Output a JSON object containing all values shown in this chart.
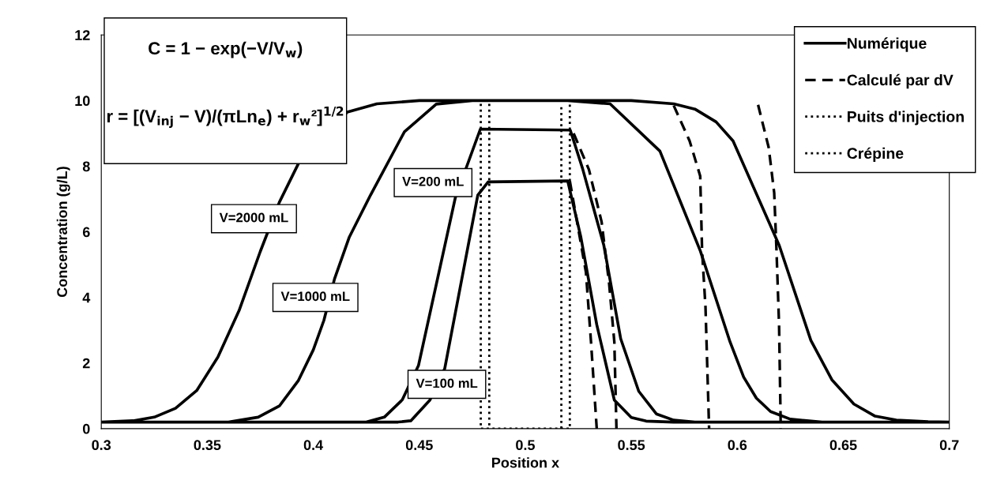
{
  "chart_data": {
    "type": "line",
    "xlabel": "Position x",
    "ylabel": "Concentration (g/L)",
    "xlim": [
      0.3,
      0.7
    ],
    "xticks": [
      0.3,
      0.35,
      0.4,
      0.45,
      0.5,
      0.55,
      0.6,
      0.65,
      0.7
    ],
    "ylim": [
      0,
      12
    ],
    "yticks": [
      0,
      2,
      4,
      6,
      8,
      10,
      12
    ],
    "grid": false,
    "legend": "top right",
    "marker": "none",
    "series": [
      {
        "name": "Numérique",
        "line_style": "solid",
        "color": "#000000",
        "x": [
          0.3,
          0.44,
          0.446,
          0.455,
          0.462,
          0.4776,
          0.4825,
          0.52,
          0.5262,
          0.5337,
          0.542,
          0.55,
          0.557,
          0.57,
          0.7,
          null,
          0.3,
          0.425,
          0.4335,
          0.442,
          0.4496,
          0.467,
          0.4788,
          0.5212,
          0.527,
          0.537,
          0.545,
          0.5535,
          0.5618,
          0.57,
          0.58,
          0.7,
          null,
          0.3,
          0.36,
          0.374,
          0.384,
          0.393,
          0.4,
          0.405,
          0.41,
          0.417,
          0.427,
          0.443,
          0.458,
          0.475,
          0.52,
          0.54,
          0.5635,
          0.5826,
          0.5966,
          0.603,
          0.609,
          0.6157,
          0.625,
          0.64,
          0.7,
          null,
          0.3,
          0.315,
          0.325,
          0.335,
          0.345,
          0.355,
          0.365,
          0.375,
          0.384,
          0.393,
          0.416,
          0.43,
          0.45,
          0.55,
          0.57,
          0.58,
          0.59,
          0.598,
          0.6198,
          0.6347,
          0.6446,
          0.655,
          0.665,
          0.675,
          0.69,
          0.7
        ],
        "values": [
          0.2,
          0.2,
          0.24,
          0.87,
          1.83,
          7.12,
          7.52,
          7.55,
          5.84,
          3.17,
          0.87,
          0.34,
          0.23,
          0.2,
          0.2,
          null,
          0.2,
          0.2,
          0.35,
          0.88,
          1.92,
          7.04,
          9.13,
          9.1,
          7.93,
          5.6,
          2.74,
          1.14,
          0.45,
          0.26,
          0.2,
          0.2,
          null,
          0.2,
          0.2,
          0.35,
          0.69,
          1.47,
          2.4,
          3.3,
          4.56,
          5.84,
          7.12,
          9.05,
          9.89,
          10,
          10,
          9.9,
          8.46,
          5.41,
          2.64,
          1.57,
          0.93,
          0.52,
          0.29,
          0.2,
          0.2,
          null,
          0.2,
          0.24,
          0.35,
          0.62,
          1.16,
          2.18,
          3.6,
          5.4,
          6.9,
          8.08,
          9.65,
          9.9,
          10,
          10,
          9.9,
          9.74,
          9.35,
          8.77,
          5.58,
          2.69,
          1.49,
          0.75,
          0.38,
          0.26,
          0.21,
          0.2
        ]
      },
      {
        "name": "Calculé par dV",
        "line_style": "dashed",
        "color": "#000000",
        "x": [
          0.521,
          0.5286,
          0.531,
          0.5337,
          null,
          0.5228,
          0.53,
          0.536,
          0.5395,
          0.542,
          0.543,
          null,
          0.57,
          0.5775,
          0.5825,
          0.5834,
          0.585,
          0.5867,
          null,
          0.6098,
          0.6148,
          0.6174,
          0.6185,
          0.6197,
          0.6205
        ],
        "values": [
          7.55,
          4.77,
          2.64,
          0,
          null,
          9.0,
          7.9,
          6.3,
          4.45,
          2.64,
          0,
          null,
          9.85,
          8.77,
          7.7,
          5.41,
          3.7,
          0,
          null,
          9.87,
          8.57,
          7.19,
          5.41,
          3.17,
          0
        ]
      },
      {
        "name": "Puits d'injection",
        "line_style": "dotted",
        "color": "#000000",
        "x": [
          0.479,
          0.479,
          0.521,
          0.521
        ],
        "values": [
          9.9,
          0,
          0,
          9.9
        ]
      },
      {
        "name": "Crépine",
        "line_style": "dotted",
        "color": "#000000",
        "x": [
          0.483,
          0.483,
          0.5,
          0.517,
          0.517
        ],
        "values": [
          9.9,
          0,
          null,
          0,
          9.9
        ]
      }
    ],
    "annotations": [
      "C = 1 − exp(−V/V$_{w}$)",
      "r = [(V$_{inj}$ − V)/(πLn$_{e}$) + r$_{w}$²]$^{1/2}$",
      "V=2000 mL",
      "V=1000 mL",
      "V=200 mL",
      "V=100 mL"
    ]
  }
}
